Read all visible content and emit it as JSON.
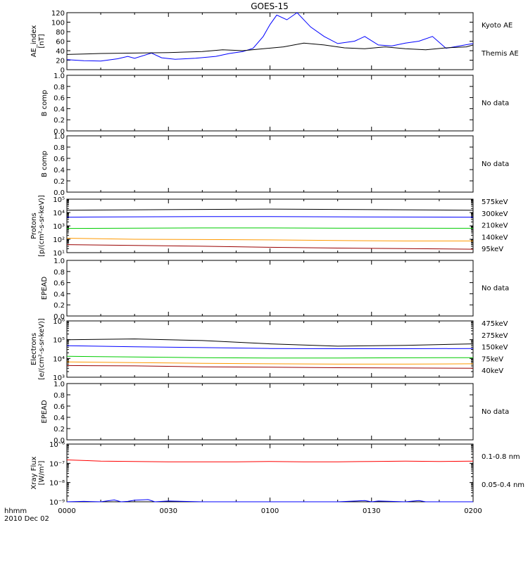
{
  "title": "GOES-15",
  "time_axis": {
    "tick_labels": [
      "0000",
      "0030",
      "0100",
      "0130",
      "0200"
    ],
    "corner_label_1": "hhmm",
    "corner_label_2": "2010 Dec 02"
  },
  "panels": [
    {
      "id": "ae",
      "ylabel": [
        "AE_index",
        "[nT]"
      ],
      "scale": "linear",
      "ylim": [
        0,
        120
      ],
      "yticks": [
        0,
        20,
        40,
        60,
        80,
        100,
        120
      ],
      "ytick_labels": [
        "0",
        "20",
        "40",
        "60",
        "80",
        "100",
        "120"
      ],
      "legend": [
        {
          "text": "Kyoto AE",
          "color": "#0000ff"
        },
        {
          "text": "Themis AE",
          "color": "#000000"
        }
      ],
      "series": [
        {
          "name": "Kyoto AE",
          "color": "#0000ff",
          "x": [
            0,
            5,
            10,
            15,
            18,
            20,
            25,
            28,
            32,
            38,
            44,
            48,
            52,
            55,
            58,
            60,
            62,
            65,
            68,
            72,
            76,
            80,
            85,
            88,
            92,
            96,
            100,
            104,
            108,
            112,
            116,
            120
          ],
          "y": [
            21,
            19,
            18,
            23,
            28,
            24,
            35,
            25,
            22,
            24,
            28,
            34,
            38,
            45,
            70,
            95,
            115,
            105,
            120,
            90,
            70,
            55,
            60,
            70,
            52,
            50,
            56,
            60,
            70,
            45,
            50,
            55
          ]
        },
        {
          "name": "Themis AE",
          "color": "#000000",
          "x": [
            0,
            10,
            20,
            30,
            40,
            46,
            52,
            58,
            64,
            70,
            76,
            82,
            88,
            94,
            100,
            106,
            112,
            118,
            120
          ],
          "y": [
            32,
            34,
            35,
            36,
            38,
            42,
            40,
            44,
            48,
            56,
            52,
            46,
            44,
            48,
            44,
            42,
            46,
            48,
            52
          ]
        }
      ]
    },
    {
      "id": "b1",
      "ylabel": [
        "B comp"
      ],
      "scale": "linear",
      "ylim": [
        0,
        1
      ],
      "yticks": [
        0,
        0.2,
        0.4,
        0.6,
        0.8,
        1.0
      ],
      "ytick_labels": [
        "0.0",
        "0.2",
        "0.4",
        "0.6",
        "0.8",
        "1.0"
      ],
      "legend": [
        {
          "text": "No data",
          "color": "#000000"
        }
      ],
      "series": []
    },
    {
      "id": "b2",
      "ylabel": [
        "B comp"
      ],
      "scale": "linear",
      "ylim": [
        0,
        1
      ],
      "yticks": [
        0,
        0.2,
        0.4,
        0.6,
        0.8,
        1.0
      ],
      "ytick_labels": [
        "0.0",
        "0.2",
        "0.4",
        "0.6",
        "0.8",
        "1.0"
      ],
      "legend": [
        {
          "text": "No data",
          "color": "#000000"
        }
      ],
      "series": []
    },
    {
      "id": "protons",
      "ylabel": [
        "Protons",
        "[p/(cm²-s-sr-keV)]"
      ],
      "scale": "log",
      "ylim": [
        10,
        100000
      ],
      "yticks": [
        10,
        100,
        1000,
        10000,
        100000
      ],
      "ytick_labels": [
        "10¹",
        "10²",
        "10³",
        "10⁴",
        "10⁵"
      ],
      "legend": [
        {
          "text": "575keV",
          "color": "#990000"
        },
        {
          "text": "300keV",
          "color": "#ff9900"
        },
        {
          "text": "210keV",
          "color": "#00cc00"
        },
        {
          "text": "140keV",
          "color": "#0000ff"
        },
        {
          "text": "95keV",
          "color": "#000000"
        }
      ],
      "series": [
        {
          "name": "95keV",
          "color": "#000000",
          "x": [
            0,
            20,
            40,
            60,
            80,
            100,
            120
          ],
          "y": [
            15000,
            16000,
            17000,
            18000,
            17000,
            16000,
            15000
          ]
        },
        {
          "name": "140keV",
          "color": "#0000ff",
          "x": [
            0,
            20,
            40,
            60,
            80,
            100,
            120
          ],
          "y": [
            4500,
            4800,
            5000,
            5000,
            4800,
            4600,
            4500
          ]
        },
        {
          "name": "210keV",
          "color": "#00cc00",
          "x": [
            0,
            20,
            40,
            60,
            80,
            100,
            120
          ],
          "y": [
            650,
            680,
            700,
            700,
            680,
            670,
            660
          ]
        },
        {
          "name": "300keV",
          "color": "#ff9900",
          "x": [
            0,
            20,
            40,
            60,
            80,
            100,
            120
          ],
          "y": [
            120,
            100,
            95,
            90,
            80,
            75,
            75
          ]
        },
        {
          "name": "575keV",
          "color": "#990000",
          "x": [
            0,
            20,
            40,
            60,
            80,
            100,
            120
          ],
          "y": [
            40,
            35,
            30,
            25,
            22,
            20,
            18
          ]
        }
      ]
    },
    {
      "id": "epead1",
      "ylabel": [
        "EPEAD"
      ],
      "scale": "linear",
      "ylim": [
        0,
        1
      ],
      "yticks": [
        0,
        0.2,
        0.4,
        0.6,
        0.8,
        1.0
      ],
      "ytick_labels": [
        "0.0",
        "0.2",
        "0.4",
        "0.6",
        "0.8",
        "1.0"
      ],
      "legend": [
        {
          "text": "No data",
          "color": "#000000"
        }
      ],
      "series": []
    },
    {
      "id": "electrons",
      "ylabel": [
        "Electrons",
        "[e/(cm²-s-sr-keV)]"
      ],
      "scale": "log",
      "ylim": [
        1000,
        1000000
      ],
      "yticks": [
        1000,
        10000,
        100000,
        1000000
      ],
      "ytick_labels": [
        "10³",
        "10⁴",
        "10⁵",
        "10⁶"
      ],
      "legend": [
        {
          "text": "475keV",
          "color": "#990000"
        },
        {
          "text": "275keV",
          "color": "#ff9900"
        },
        {
          "text": "150keV",
          "color": "#00cc00"
        },
        {
          "text": "75keV",
          "color": "#0000ff"
        },
        {
          "text": "40keV",
          "color": "#000000"
        }
      ],
      "series": [
        {
          "name": "40keV",
          "color": "#000000",
          "x": [
            0,
            20,
            40,
            60,
            80,
            100,
            120
          ],
          "y": [
            100000,
            110000,
            90000,
            60000,
            45000,
            50000,
            60000
          ]
        },
        {
          "name": "75keV",
          "color": "#0000ff",
          "x": [
            0,
            20,
            40,
            60,
            80,
            100,
            120
          ],
          "y": [
            48000,
            42000,
            38000,
            34000,
            33000,
            33000,
            34000
          ]
        },
        {
          "name": "150keV",
          "color": "#00cc00",
          "x": [
            0,
            20,
            40,
            60,
            80,
            100,
            120
          ],
          "y": [
            13000,
            12000,
            11000,
            10500,
            10500,
            10800,
            11000
          ]
        },
        {
          "name": "275keV",
          "color": "#ff9900",
          "x": [
            0,
            20,
            40,
            60,
            80,
            100,
            120
          ],
          "y": [
            6500,
            6000,
            5500,
            5200,
            5000,
            5000,
            5200
          ]
        },
        {
          "name": "475keV",
          "color": "#990000",
          "x": [
            0,
            20,
            40,
            60,
            80,
            100,
            120
          ],
          "y": [
            4200,
            4000,
            3600,
            3400,
            3200,
            3100,
            3000
          ]
        }
      ]
    },
    {
      "id": "epead2",
      "ylabel": [
        "EPEAD"
      ],
      "scale": "linear",
      "ylim": [
        0,
        1
      ],
      "yticks": [
        0,
        0.2,
        0.4,
        0.6,
        0.8,
        1.0
      ],
      "ytick_labels": [
        "0.0",
        "0.2",
        "0.4",
        "0.6",
        "0.8",
        "1.0"
      ],
      "legend": [
        {
          "text": "No data",
          "color": "#000000"
        }
      ],
      "series": []
    },
    {
      "id": "xray",
      "ylabel": [
        "Xray Flux",
        "[W/m²]"
      ],
      "scale": "log",
      "ylim": [
        1e-09,
        1e-06
      ],
      "yticks": [
        1e-09,
        1e-08,
        1e-07,
        1e-06
      ],
      "ytick_labels": [
        "10⁻⁹",
        "10⁻⁸",
        "10⁻⁷",
        "10⁻⁶"
      ],
      "legend": [
        {
          "text": "0.1-0.8 nm",
          "color": "#ff0000"
        },
        {
          "text": "0.05-0.4 nm",
          "color": "#0000ff"
        }
      ],
      "series": [
        {
          "name": "0.1-0.8 nm",
          "color": "#ff0000",
          "x": [
            0,
            10,
            20,
            30,
            40,
            50,
            60,
            70,
            80,
            90,
            100,
            110,
            120
          ],
          "y": [
            1.5e-07,
            1.3e-07,
            1.25e-07,
            1.2e-07,
            1.2e-07,
            1.2e-07,
            1.25e-07,
            1.2e-07,
            1.2e-07,
            1.25e-07,
            1.3e-07,
            1.25e-07,
            1.3e-07
          ]
        },
        {
          "name": "0.05-0.4 nm",
          "color": "#0000ff",
          "x": [
            0,
            5,
            10,
            14,
            16,
            18,
            20,
            24,
            26,
            30,
            40,
            60,
            80,
            88,
            90,
            92,
            100,
            104,
            106,
            110,
            120
          ],
          "y": [
            1e-09,
            1.05e-09,
            1e-09,
            1.25e-09,
            1e-09,
            1.05e-09,
            1.2e-09,
            1.3e-09,
            1e-09,
            1.1e-09,
            1e-09,
            1e-09,
            1e-09,
            1.15e-09,
            1e-09,
            1.1e-09,
            1e-09,
            1.15e-09,
            1e-09,
            1e-09,
            1e-09
          ]
        }
      ]
    }
  ],
  "chart_data": {
    "type": "line",
    "title": "GOES-15",
    "xlabel": "hhmm",
    "x_unit_note": "",
    "x_range": [
      "0000",
      "0200"
    ],
    "panels": [
      {
        "name": "AE_index [nT]",
        "ylim": [
          0,
          120
        ],
        "series_names": [
          "Kyoto AE",
          "Themis AE"
        ]
      },
      {
        "name": "B comp",
        "ylim": [
          0,
          1
        ],
        "status": "No data"
      },
      {
        "name": "B comp",
        "ylim": [
          0,
          1
        ],
        "status": "No data"
      },
      {
        "name": "Protons [p/(cm²-s-sr-keV)]",
        "scale": "log",
        "ylim": [
          10,
          100000
        ],
        "series_names": [
          "575keV",
          "300keV",
          "210keV",
          "140keV",
          "95keV"
        ]
      },
      {
        "name": "EPEAD",
        "ylim": [
          0,
          1
        ],
        "status": "No data"
      },
      {
        "name": "Electrons [e/(cm²-s-sr-keV)]",
        "scale": "log",
        "ylim": [
          1000,
          1000000
        ],
        "series_names": [
          "475keV",
          "275keV",
          "150keV",
          "75keV",
          "40keV"
        ]
      },
      {
        "name": "EPEAD",
        "ylim": [
          0,
          1
        ],
        "status": "No data"
      },
      {
        "name": "Xray Flux [W/m²]",
        "scale": "log",
        "ylim": [
          1e-09,
          1e-06
        ],
        "series_names": [
          "0.1-0.8 nm",
          "0.05-0.4 nm"
        ]
      }
    ]
  }
}
